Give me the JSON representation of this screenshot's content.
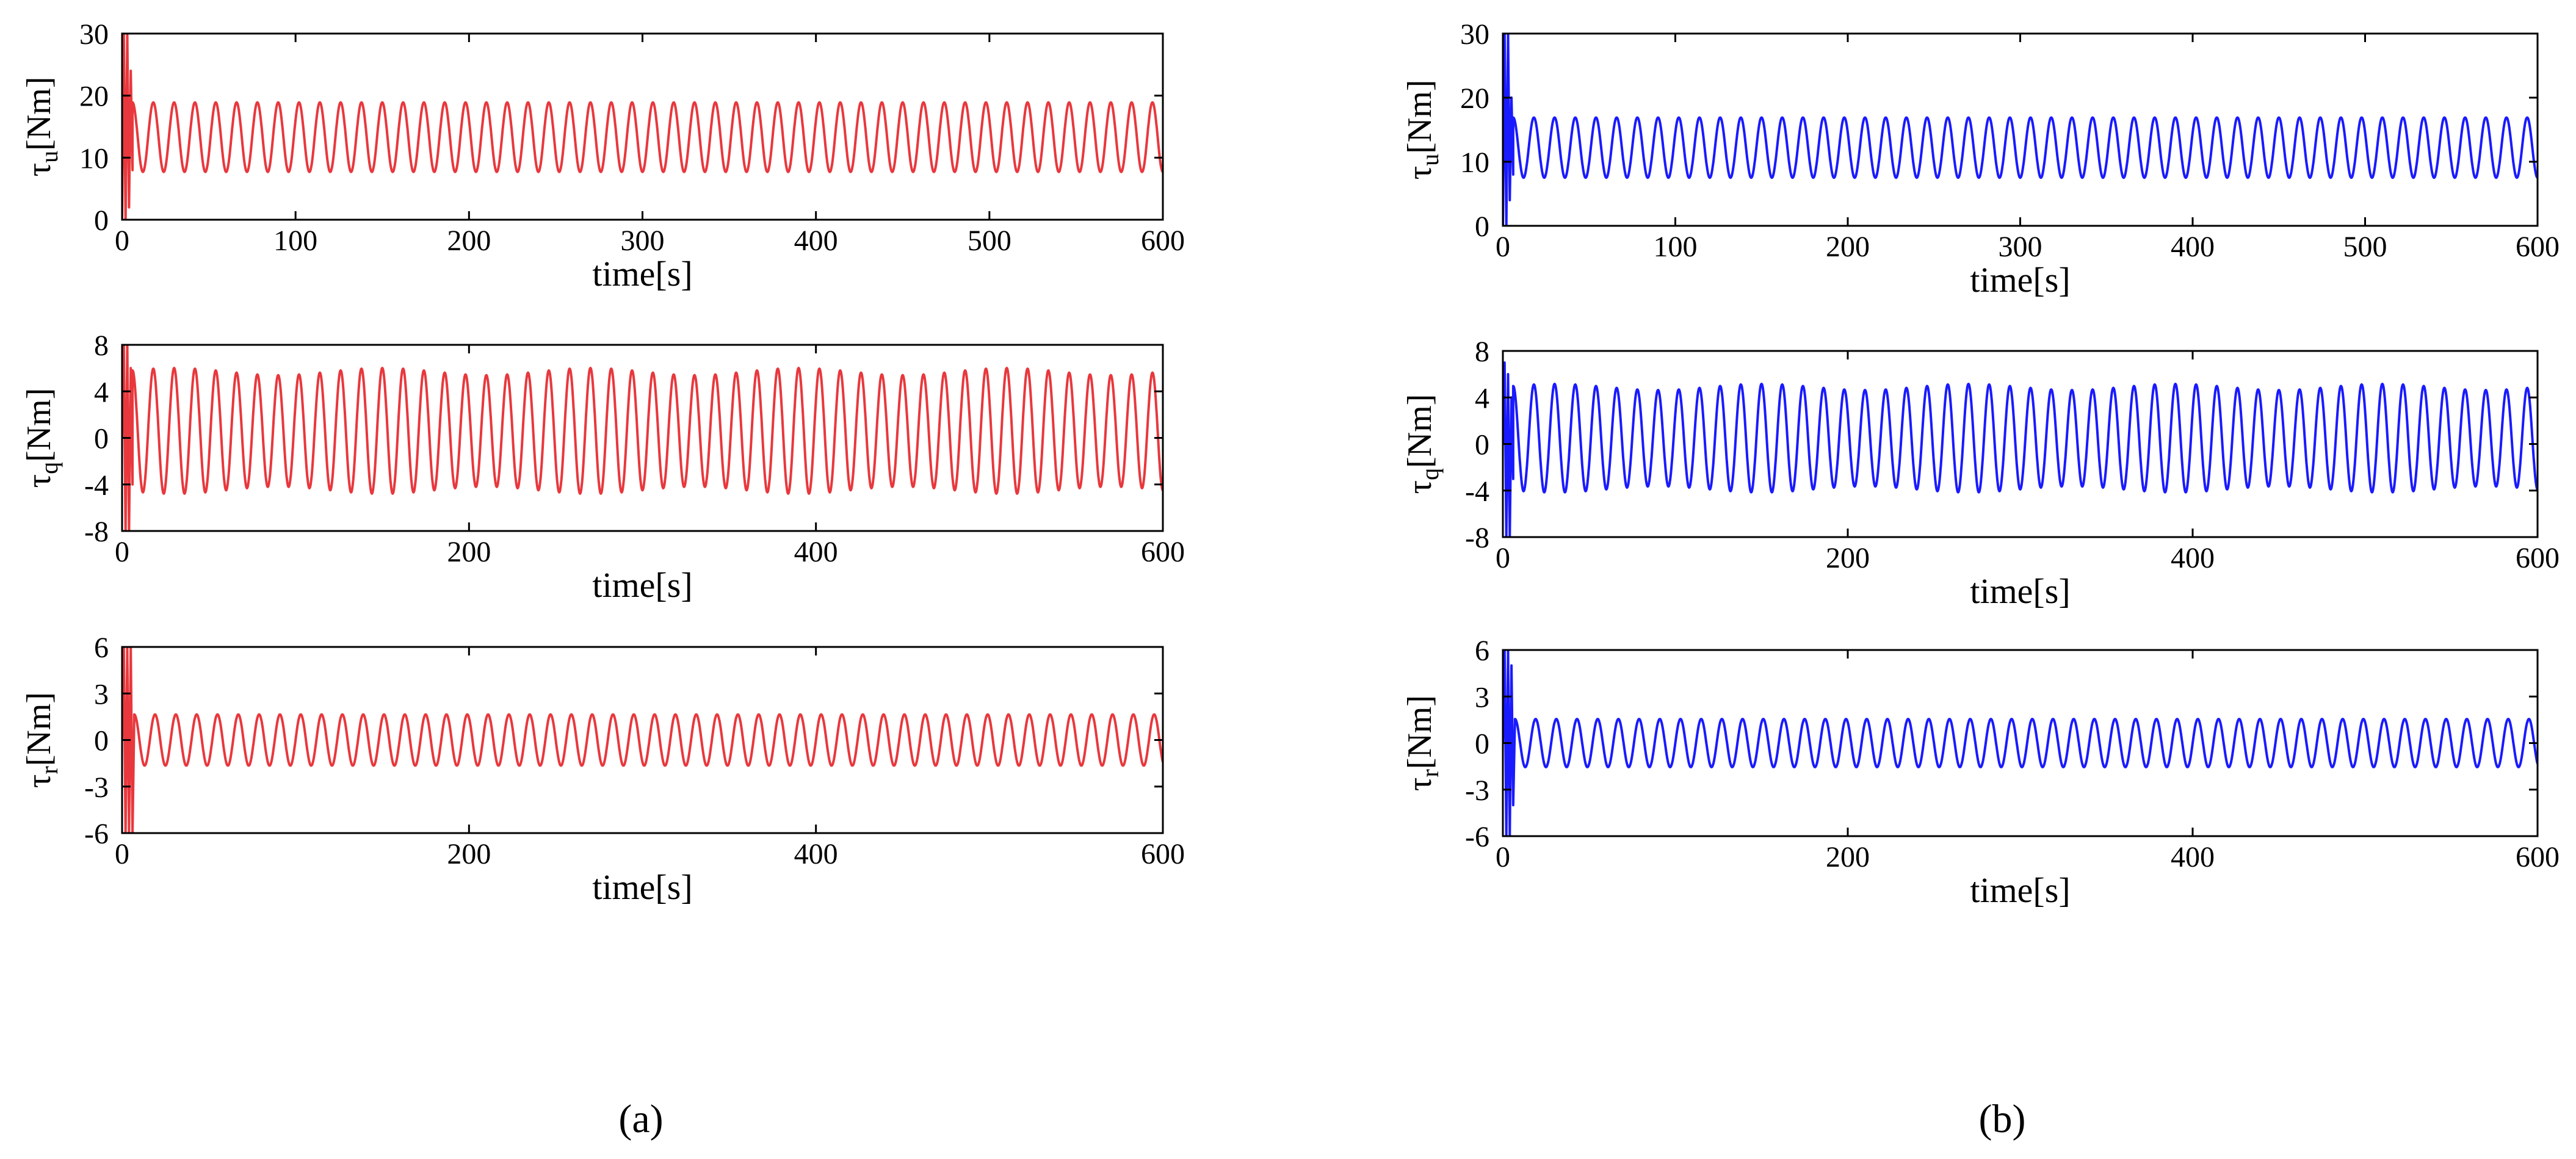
{
  "chart_data": [
    {
      "type": "line",
      "panel": "a",
      "title": "",
      "color": "#e8383d",
      "xlabel": "time[s]",
      "ylabel_main": "τ",
      "ylabel_sub": "u",
      "ylabel_unit": "[Nm]",
      "xlim": [
        0,
        600
      ],
      "ylim": [
        0,
        30
      ],
      "xticks": [
        0,
        100,
        200,
        300,
        400,
        500,
        600
      ],
      "yticks": [
        0,
        10,
        20,
        30
      ],
      "signal": {
        "mean": 13.3,
        "amplitude": 5.6,
        "period_s": 12,
        "modulation": 0,
        "transient": [
          [
            0,
            0
          ],
          [
            1,
            30
          ],
          [
            2,
            0
          ],
          [
            3,
            30
          ],
          [
            4,
            2
          ],
          [
            5,
            24
          ],
          [
            6,
            8
          ]
        ]
      },
      "series": [
        {
          "name": "τu",
          "steady_min": 7.7,
          "steady_max": 18.9
        }
      ]
    },
    {
      "type": "line",
      "panel": "a",
      "title": "",
      "color": "#e8383d",
      "xlabel": "time[s]",
      "ylabel_main": "τ",
      "ylabel_sub": "q",
      "ylabel_unit": "[Nm]",
      "xlim": [
        0,
        600
      ],
      "ylim": [
        -8,
        8
      ],
      "xticks": [
        0,
        200,
        400,
        600
      ],
      "yticks": [
        -8,
        -4,
        0,
        4,
        8
      ],
      "signal": {
        "mean": 0.6,
        "amplitude": 5.1,
        "period_s": 12,
        "modulation": 0.06,
        "transient": [
          [
            0,
            0
          ],
          [
            1,
            8
          ],
          [
            2,
            -8
          ],
          [
            3,
            8
          ],
          [
            4,
            -8
          ],
          [
            5,
            6
          ],
          [
            6,
            -4
          ]
        ]
      },
      "series": [
        {
          "name": "τq",
          "steady_min": -4.5,
          "steady_max": 5.7
        }
      ]
    },
    {
      "type": "line",
      "panel": "a",
      "title": "",
      "color": "#e8383d",
      "xlabel": "time[s]",
      "ylabel_main": "τ",
      "ylabel_sub": "r",
      "ylabel_unit": "[Nm]",
      "xlim": [
        0,
        600
      ],
      "ylim": [
        -6,
        6
      ],
      "xticks": [
        0,
        200,
        400,
        600
      ],
      "yticks": [
        -6,
        -3,
        0,
        3,
        6
      ],
      "signal": {
        "mean": 0,
        "amplitude": 1.65,
        "period_s": 12,
        "modulation": 0,
        "transient": [
          [
            0,
            0
          ],
          [
            1,
            6
          ],
          [
            2,
            -6
          ],
          [
            3,
            6
          ],
          [
            4,
            -6
          ],
          [
            5,
            6
          ],
          [
            6,
            -6
          ],
          [
            7,
            1.5
          ]
        ]
      },
      "series": [
        {
          "name": "τr",
          "steady_min": -1.6,
          "steady_max": 1.7
        }
      ]
    },
    {
      "type": "line",
      "panel": "b",
      "title": "",
      "color": "#1a1aff",
      "xlabel": "time[s]",
      "ylabel_main": "τ",
      "ylabel_sub": "u",
      "ylabel_unit": "[Nm]",
      "xlim": [
        0,
        600
      ],
      "ylim": [
        0,
        30
      ],
      "xticks": [
        0,
        100,
        200,
        300,
        400,
        500,
        600
      ],
      "yticks": [
        0,
        10,
        20,
        30
      ],
      "signal": {
        "mean": 12.2,
        "amplitude": 4.7,
        "period_s": 12,
        "modulation": 0,
        "transient": [
          [
            0,
            0
          ],
          [
            1,
            30
          ],
          [
            2,
            0
          ],
          [
            3,
            30
          ],
          [
            4,
            4
          ],
          [
            5,
            20
          ],
          [
            6,
            8
          ]
        ]
      },
      "series": [
        {
          "name": "τu",
          "steady_min": 7.5,
          "steady_max": 16.9
        }
      ]
    },
    {
      "type": "line",
      "panel": "b",
      "title": "",
      "color": "#1a1aff",
      "xlabel": "time[s]",
      "ylabel_main": "τ",
      "ylabel_sub": "q",
      "ylabel_unit": "[Nm]",
      "xlim": [
        0,
        600
      ],
      "ylim": [
        -8,
        8
      ],
      "xticks": [
        0,
        200,
        400,
        600
      ],
      "yticks": [
        -8,
        -4,
        0,
        4,
        8
      ],
      "signal": {
        "mean": 0.5,
        "amplitude": 4.4,
        "period_s": 12,
        "modulation": 0.06,
        "transient": [
          [
            0,
            0
          ],
          [
            1,
            7
          ],
          [
            2,
            -8
          ],
          [
            3,
            6
          ],
          [
            4,
            -8
          ],
          [
            5,
            4
          ],
          [
            6,
            -3
          ]
        ]
      },
      "series": [
        {
          "name": "τq",
          "steady_min": -3.9,
          "steady_max": 4.9
        }
      ]
    },
    {
      "type": "line",
      "panel": "b",
      "title": "",
      "color": "#1a1aff",
      "xlabel": "time[s]",
      "ylabel_main": "τ",
      "ylabel_sub": "r",
      "ylabel_unit": "[Nm]",
      "xlim": [
        0,
        600
      ],
      "ylim": [
        -6,
        6
      ],
      "xticks": [
        0,
        200,
        400,
        600
      ],
      "yticks": [
        -6,
        -3,
        0,
        3,
        6
      ],
      "signal": {
        "mean": 0,
        "amplitude": 1.55,
        "period_s": 12,
        "modulation": 0,
        "transient": [
          [
            0,
            0
          ],
          [
            1,
            6
          ],
          [
            2,
            -6
          ],
          [
            3,
            6
          ],
          [
            4,
            -6
          ],
          [
            5,
            5
          ],
          [
            6,
            -4
          ],
          [
            7,
            1.5
          ]
        ]
      },
      "series": [
        {
          "name": "τr",
          "steady_min": -1.5,
          "steady_max": 1.6
        }
      ]
    }
  ],
  "captions": {
    "a": "(a)",
    "b": "(b)"
  }
}
